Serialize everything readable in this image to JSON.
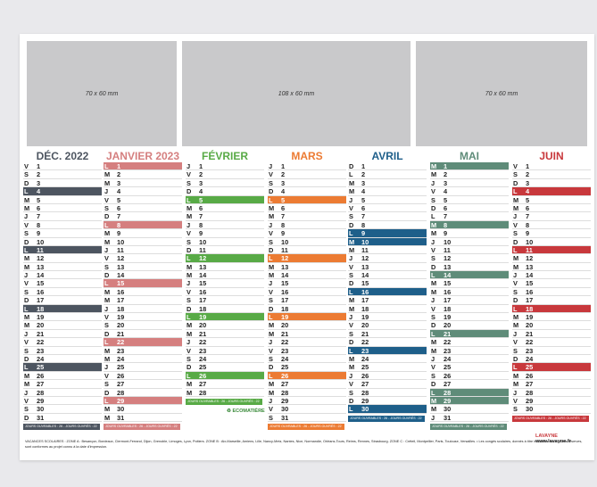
{
  "photos": [
    {
      "label": "70 x 60 mm"
    },
    {
      "label": "108 x 60 mm"
    },
    {
      "label": "70 x 60 mm"
    }
  ],
  "months": [
    {
      "name": "DÉC. 2022",
      "color": "#4d5560"
    },
    {
      "name": "JANVIER 2023",
      "color": "#d57f7f"
    },
    {
      "name": "FÉVRIER",
      "color": "#58aa46"
    },
    {
      "name": "MARS",
      "color": "#ec7b33"
    },
    {
      "name": "AVRIL",
      "color": "#1e5f8a"
    },
    {
      "name": "MAI",
      "color": "#5f8c79"
    },
    {
      "name": "JUIN",
      "color": "#c8383c"
    }
  ],
  "footer": "JOURS OUVRABLES : 26 - JOURS OUVRÉS : 22",
  "logo": "ECOMATIÈRE",
  "brand": {
    "a": "LAVAYNE",
    "b": "www.lavayne.fr"
  },
  "legend": "VACANCES SCOLAIRES : ZONE A : Besançon, Bordeaux, Clermont-Ferrand, Dijon, Grenoble, Limoges, Lyon, Poitiers. ZONE B : Aix-Marseille, Amiens, Lille, Nancy-Metz, Nantes, Nice, Normandie, Orléans-Tours, Reims, Rennes, Strasbourg. ZONE C : Créteil, Montpellier, Paris, Toulouse, Versailles. • Les congés scolaires, donnés à titre indicatif et sous toutes réserves, sont conformes au projet connu à la date d'impression."
}
